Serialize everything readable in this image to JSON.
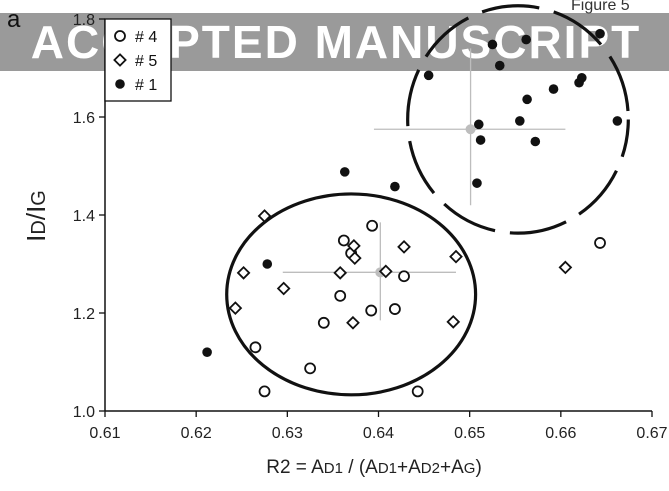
{
  "panel_label": "a",
  "figure_label": "Figure 5",
  "watermark": "ACCEPTED MANUSCRIPT",
  "colors": {
    "watermark_band": "#9a9a9a",
    "crosshair": "#bdbdbd",
    "ink": "#111111",
    "brown_point": "#3a1a12"
  },
  "chart_data": {
    "type": "scatter",
    "xlabel_parts": [
      "R2 = A",
      "D1",
      " / (A",
      "D1",
      "+A",
      "D2",
      "+A",
      "G",
      ")"
    ],
    "ylabel_parts": [
      "I",
      "D",
      "/I",
      "G"
    ],
    "xlim": [
      0.61,
      0.67
    ],
    "ylim": [
      1.0,
      1.8
    ],
    "xticks": [
      "0.61",
      "0.62",
      "0.63",
      "0.64",
      "0.65",
      "0.66",
      "0.67"
    ],
    "yticks": [
      "1.0",
      "1.2",
      "1.4",
      "1.6",
      "1.8"
    ],
    "grid": false,
    "legend_position": "top-left",
    "legend": [
      {
        "marker": "open-circle",
        "label": "# 4"
      },
      {
        "marker": "open-diamond",
        "label": "# 5"
      },
      {
        "marker": "filled-circle",
        "label": "# 1"
      }
    ],
    "series": [
      {
        "marker": "open-circle",
        "points": [
          [
            0.6275,
            1.04
          ],
          [
            0.6265,
            1.13
          ],
          [
            0.6325,
            1.087
          ],
          [
            0.634,
            1.18
          ],
          [
            0.6358,
            1.235
          ],
          [
            0.6362,
            1.348
          ],
          [
            0.637,
            1.322
          ],
          [
            0.6392,
            1.205
          ],
          [
            0.6393,
            1.378
          ],
          [
            0.6418,
            1.208
          ],
          [
            0.6428,
            1.275
          ],
          [
            0.6443,
            1.04
          ]
        ]
      },
      {
        "marker": "open-diamond",
        "points": [
          [
            0.6243,
            1.21
          ],
          [
            0.6252,
            1.282
          ],
          [
            0.6275,
            1.398
          ],
          [
            0.6296,
            1.25
          ],
          [
            0.6358,
            1.282
          ],
          [
            0.6373,
            1.337
          ],
          [
            0.6374,
            1.312
          ],
          [
            0.6372,
            1.18
          ],
          [
            0.6408,
            1.285
          ],
          [
            0.6428,
            1.335
          ],
          [
            0.6482,
            1.182
          ],
          [
            0.6485,
            1.315
          ],
          [
            0.6605,
            1.293
          ]
        ]
      },
      {
        "marker": "filled-circle",
        "points": [
          [
            0.6212,
            1.12
          ],
          [
            0.6278,
            1.3
          ],
          [
            0.6363,
            1.488
          ],
          [
            0.6418,
            1.458
          ],
          [
            0.6455,
            1.685
          ],
          [
            0.6508,
            1.465
          ],
          [
            0.651,
            1.585
          ],
          [
            0.6512,
            1.553
          ],
          [
            0.6525,
            1.748
          ],
          [
            0.6533,
            1.705
          ],
          [
            0.6555,
            1.592
          ],
          [
            0.6563,
            1.636
          ],
          [
            0.6562,
            1.758
          ],
          [
            0.6572,
            1.55
          ],
          [
            0.6592,
            1.657
          ],
          [
            0.662,
            1.67
          ],
          [
            0.6623,
            1.68
          ],
          [
            0.6643,
            1.77
          ],
          [
            0.6662,
            1.592
          ]
        ]
      },
      {
        "marker": "open-circle",
        "points": [
          [
            0.6643,
            1.343
          ]
        ]
      }
    ],
    "centroids": [
      {
        "x": 0.6402,
        "y": 1.283,
        "x_range": [
          0.6295,
          0.6485
        ],
        "y_range": [
          1.185,
          1.385
        ]
      },
      {
        "x": 0.6501,
        "y": 1.575,
        "x_range": [
          0.6395,
          0.6605
        ],
        "y_range": [
          1.42,
          1.74
        ]
      }
    ],
    "ellipses": [
      {
        "cx": 0.637,
        "cy": 1.238,
        "rx": 0.01365,
        "ry": 0.205,
        "style": "solid"
      },
      {
        "cx": 0.6553,
        "cy": 1.595,
        "rx": 0.0121,
        "ry": 0.232,
        "style": "dashed"
      }
    ]
  }
}
